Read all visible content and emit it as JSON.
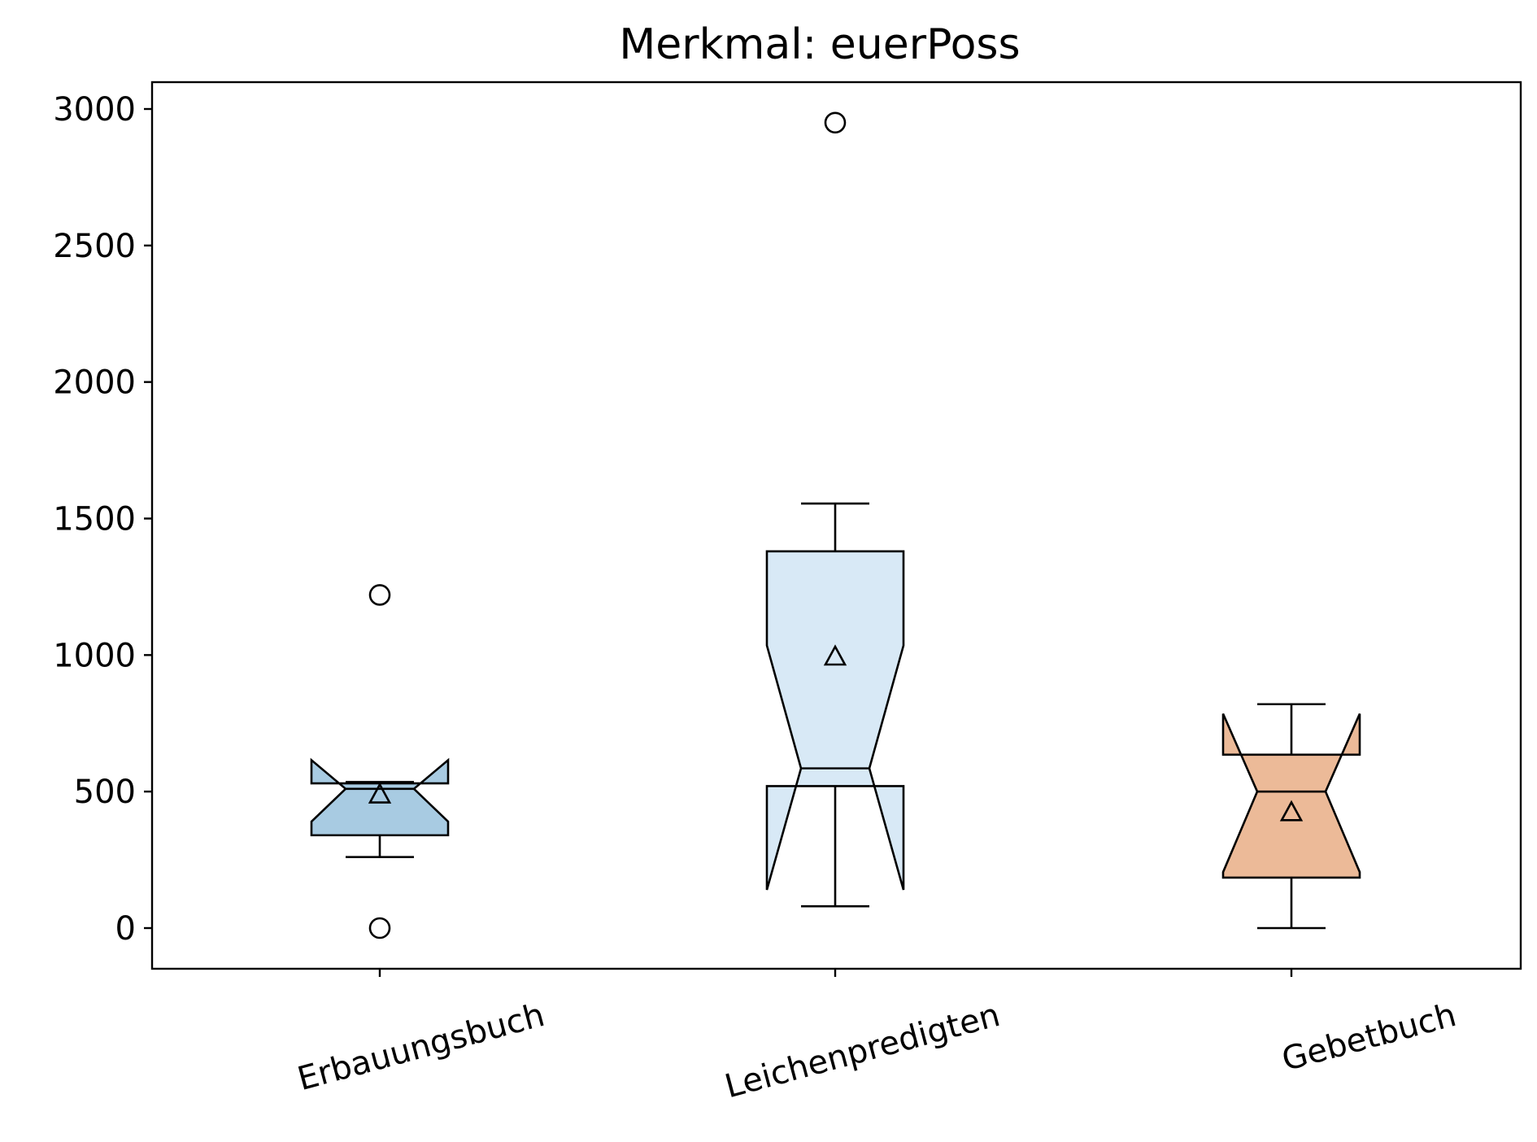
{
  "chart_data": {
    "type": "box",
    "title": "Merkmal: euerPoss",
    "xlabel": "",
    "ylabel": "",
    "ylim": [
      -150,
      3100
    ],
    "yticks": [
      0,
      500,
      1000,
      1500,
      2000,
      2500,
      3000
    ],
    "grid": false,
    "notched": true,
    "show_means": true,
    "categories": [
      "Erbauungsbuch",
      "Leichenpredigten",
      "Gebetbuch"
    ],
    "boxes": [
      {
        "category": "Erbauungsbuch",
        "color": "#a8cbe2",
        "whisker_low": 260,
        "q1": 340,
        "notch_low": 390,
        "median": 510,
        "notch_high": 615,
        "q3": 530,
        "whisker_high": 535,
        "mean": 490,
        "outliers": [
          1220,
          0
        ]
      },
      {
        "category": "Leichenpredigten",
        "color": "#d8e9f6",
        "whisker_low": 80,
        "q1": 520,
        "notch_low": 140,
        "median": 585,
        "notch_high": 1035,
        "q3": 1380,
        "whisker_high": 1555,
        "mean": 995,
        "outliers": [
          2950
        ]
      },
      {
        "category": "Gebetbuch",
        "color": "#ecba98",
        "whisker_low": 0,
        "q1": 185,
        "notch_low": 205,
        "median": 500,
        "notch_high": 785,
        "q3": 635,
        "whisker_high": 820,
        "mean": 425,
        "outliers": []
      }
    ]
  }
}
